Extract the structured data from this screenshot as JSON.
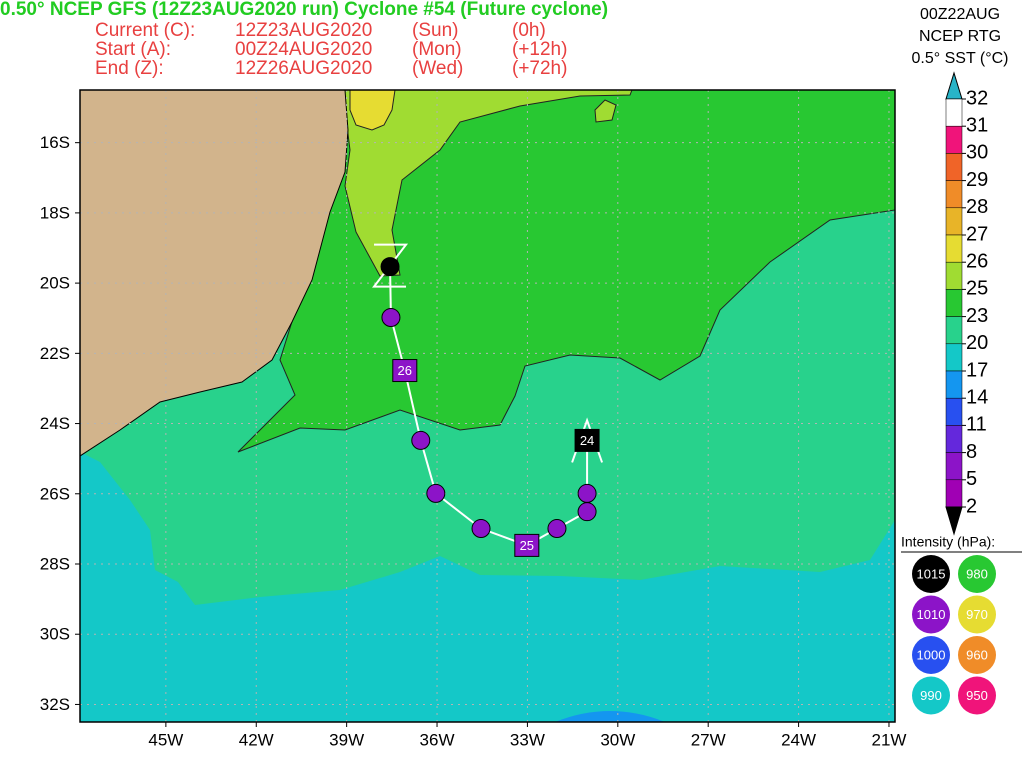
{
  "chart_data": {
    "type": "track-map",
    "title": "0.50° NCEP GFS (12Z23AUG2020 run) Cyclone #54 (Future cyclone)",
    "run_info": [
      {
        "label": "Current (C):",
        "time": "12Z23AUG2020",
        "day": "(Sun)",
        "offset": "(0h)"
      },
      {
        "label": "Start (A):",
        "time": "00Z24AUG2020",
        "day": "(Mon)",
        "offset": "(+12h)"
      },
      {
        "label": "End (Z):",
        "time": "12Z26AUG2020",
        "day": "(Wed)",
        "offset": "(+72h)"
      }
    ],
    "xlim": [
      -47.85,
      -20.8
    ],
    "ylim": [
      -32.5,
      -14.5
    ],
    "xticks": [
      {
        "value": -45,
        "label": "45W"
      },
      {
        "value": -42,
        "label": "42W"
      },
      {
        "value": -39,
        "label": "39W"
      },
      {
        "value": -36,
        "label": "36W"
      },
      {
        "value": -33,
        "label": "33W"
      },
      {
        "value": -30,
        "label": "30W"
      },
      {
        "value": -27,
        "label": "27W"
      },
      {
        "value": -24,
        "label": "24W"
      },
      {
        "value": -21,
        "label": "21W"
      }
    ],
    "yticks": [
      {
        "value": -16,
        "label": "16S"
      },
      {
        "value": -18,
        "label": "18S"
      },
      {
        "value": -20,
        "label": "20S"
      },
      {
        "value": -22,
        "label": "22S"
      },
      {
        "value": -24,
        "label": "24S"
      },
      {
        "value": -26,
        "label": "26S"
      },
      {
        "value": -28,
        "label": "28S"
      },
      {
        "value": -30,
        "label": "30S"
      },
      {
        "value": -32,
        "label": "32S"
      }
    ],
    "grid": true,
    "track": {
      "lon": [
        -37.56,
        -37.53,
        -37.07,
        -36.54,
        -36.04,
        -34.54,
        -33.02,
        -32.02,
        -31.02,
        -31.02,
        -31.02
      ],
      "lat": [
        -19.53,
        -20.98,
        -22.49,
        -24.48,
        -25.99,
        -26.99,
        -27.47,
        -26.99,
        -26.51,
        -25.99,
        -24.48
      ],
      "color": "#ffffff"
    },
    "markers": [
      {
        "shape": "circle",
        "color": "#000000"
      },
      {
        "shape": "circle",
        "color": "#8c14c8"
      },
      {
        "shape": "square",
        "color": "#8c14c8",
        "label": "26"
      },
      {
        "shape": "circle",
        "color": "#8c14c8"
      },
      {
        "shape": "circle",
        "color": "#8c14c8"
      },
      {
        "shape": "circle",
        "color": "#8c14c8"
      },
      {
        "shape": "square",
        "color": "#8c14c8",
        "label": "25"
      },
      {
        "shape": "circle",
        "color": "#8c14c8"
      },
      {
        "shape": "circle",
        "color": "#8c14c8"
      },
      {
        "shape": "circle",
        "color": "#8c14c8"
      },
      {
        "shape": "square",
        "color": "#000000",
        "label": "24"
      }
    ],
    "sst_scale": {
      "header": [
        "00Z22AUG",
        "NCEP RTG",
        "0.5° SST (°C)"
      ],
      "levels": [
        32,
        31,
        30,
        29,
        28,
        27,
        26,
        25,
        23,
        20,
        17,
        14,
        11,
        8,
        5,
        2
      ],
      "colors": [
        "#ffffff",
        "#f0147a",
        "#f06428",
        "#f08c28",
        "#e8b428",
        "#e6dc32",
        "#a0dc32",
        "#28c832",
        "#28d28c",
        "#14c8c8",
        "#1496f0",
        "#2850f0",
        "#6428dc",
        "#8c14c8",
        "#a000b4",
        "#a0a0a0"
      ],
      "over": "#28b4c8",
      "under": "#000000"
    },
    "intensity_legend": {
      "title": "Intensity (hPa):",
      "items": [
        {
          "value": 1015,
          "color": "#000000"
        },
        {
          "value": 980,
          "color": "#28c832"
        },
        {
          "value": 1010,
          "color": "#8c14c8"
        },
        {
          "value": 970,
          "color": "#e6dc32"
        },
        {
          "value": 1000,
          "color": "#2850f0"
        },
        {
          "value": 960,
          "color": "#f08c28"
        },
        {
          "value": 990,
          "color": "#14c8c8"
        },
        {
          "value": 950,
          "color": "#f0147a"
        }
      ]
    }
  }
}
